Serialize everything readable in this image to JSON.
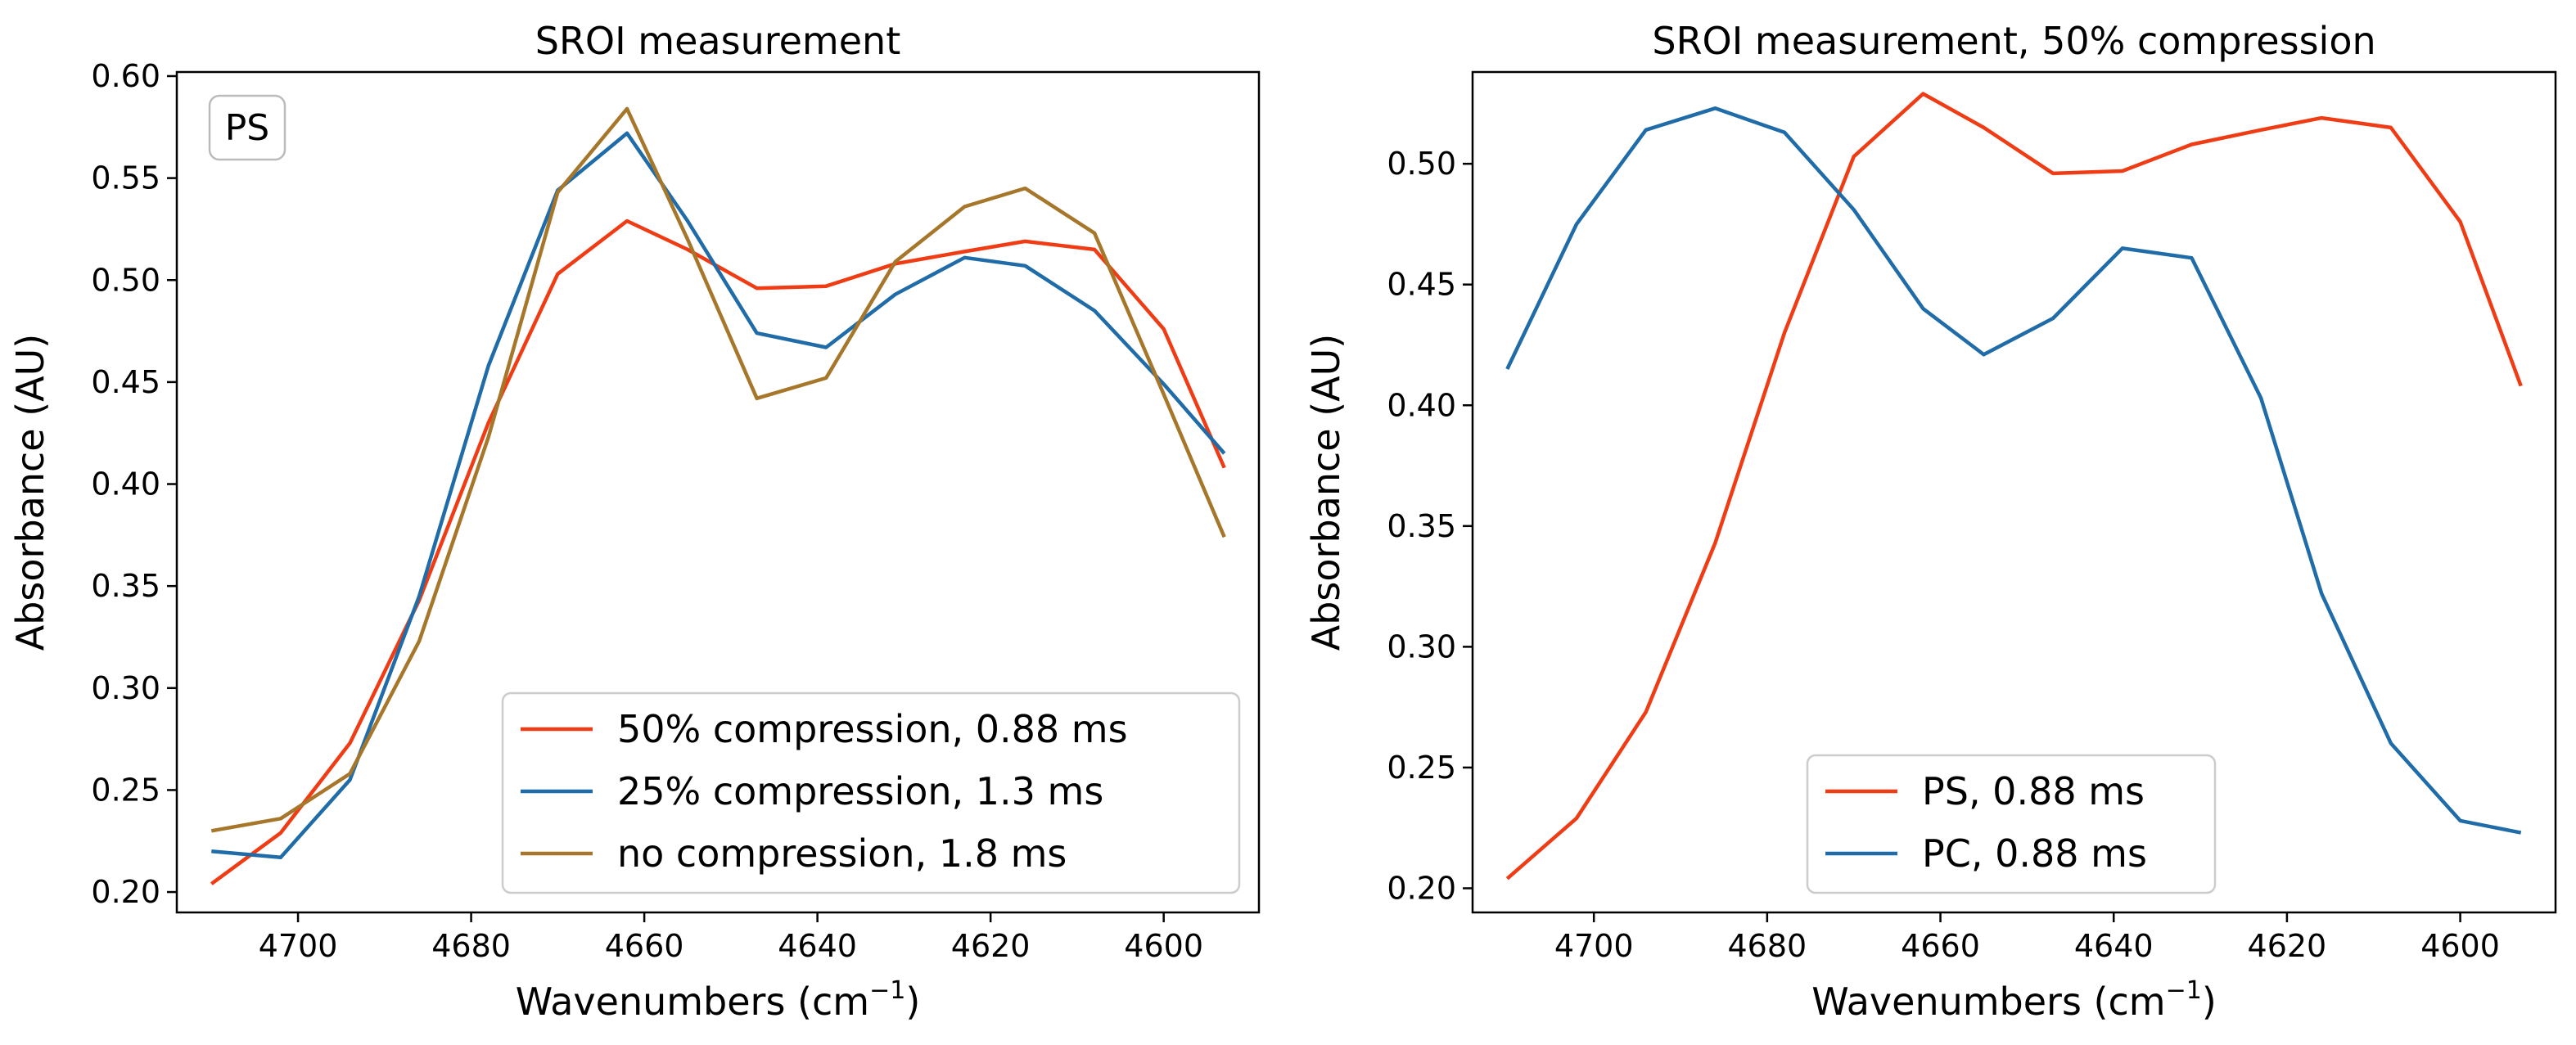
{
  "figure": {
    "background": "#ffffff"
  },
  "chart_data": [
    {
      "type": "line",
      "title": "SROI measurement",
      "xlabel": "Wavenumbers (cm⁻¹)",
      "xlabel_base": "Wavenumbers (cm",
      "xlabel_sup": "−1",
      "xlabel_tail": ")",
      "ylabel": "Absorbance (AU)",
      "x_reversed": true,
      "xlim": [
        4714,
        4589
      ],
      "ylim": [
        0.19,
        0.602
      ],
      "xticks": [
        4700,
        4680,
        4660,
        4640,
        4620,
        4600
      ],
      "yticks": [
        0.2,
        0.25,
        0.3,
        0.35,
        0.4,
        0.45,
        0.5,
        0.55,
        0.6
      ],
      "grid": false,
      "annotation": "PS",
      "legend_position": "lower right",
      "x": [
        4710,
        4702,
        4694,
        4686,
        4678,
        4670,
        4662,
        4655,
        4647,
        4639,
        4631,
        4623,
        4616,
        4608,
        4600,
        4593
      ],
      "series": [
        {
          "name": "50% compression, 0.88 ms",
          "color": "#f03c14",
          "values": [
            0.204,
            0.229,
            0.273,
            0.343,
            0.43,
            0.503,
            0.529,
            0.515,
            0.496,
            0.497,
            0.508,
            0.514,
            0.519,
            0.515,
            0.476,
            0.408
          ]
        },
        {
          "name": "25% compression, 1.3 ms",
          "color": "#1f6ca8",
          "values": [
            0.22,
            0.217,
            0.255,
            0.345,
            0.458,
            0.544,
            0.572,
            0.529,
            0.474,
            0.467,
            0.493,
            0.511,
            0.507,
            0.485,
            0.449,
            0.415
          ]
        },
        {
          "name": "no compression, 1.8 ms",
          "color": "#a6772a",
          "values": [
            0.23,
            0.236,
            0.258,
            0.323,
            0.423,
            0.543,
            0.584,
            0.52,
            0.442,
            0.452,
            0.509,
            0.536,
            0.545,
            0.523,
            0.444,
            0.374
          ]
        }
      ]
    },
    {
      "type": "line",
      "title": "SROI measurement, 50% compression",
      "xlabel": "Wavenumbers (cm⁻¹)",
      "xlabel_base": "Wavenumbers (cm",
      "xlabel_sup": "−1",
      "xlabel_tail": ")",
      "ylabel": "Absorbance (AU)",
      "x_reversed": true,
      "xlim": [
        4714,
        4589
      ],
      "ylim": [
        0.19,
        0.538
      ],
      "xticks": [
        4700,
        4680,
        4660,
        4640,
        4620,
        4600
      ],
      "yticks": [
        0.2,
        0.25,
        0.3,
        0.35,
        0.4,
        0.45,
        0.5
      ],
      "grid": false,
      "legend_position": "lower center",
      "x": [
        4710,
        4702,
        4694,
        4686,
        4678,
        4670,
        4662,
        4655,
        4647,
        4639,
        4631,
        4623,
        4616,
        4608,
        4600,
        4593
      ],
      "series": [
        {
          "name": "PS, 0.88 ms",
          "color": "#f03c14",
          "values": [
            0.204,
            0.229,
            0.273,
            0.343,
            0.43,
            0.503,
            0.529,
            0.515,
            0.496,
            0.497,
            0.508,
            0.514,
            0.519,
            0.515,
            0.476,
            0.408
          ]
        },
        {
          "name": "PC, 0.88 ms",
          "color": "#1f6ca8",
          "values": [
            0.415,
            0.475,
            0.514,
            0.523,
            0.513,
            0.481,
            0.44,
            0.421,
            0.436,
            0.465,
            0.461,
            0.403,
            0.322,
            0.26,
            0.228,
            0.223
          ]
        }
      ]
    }
  ]
}
